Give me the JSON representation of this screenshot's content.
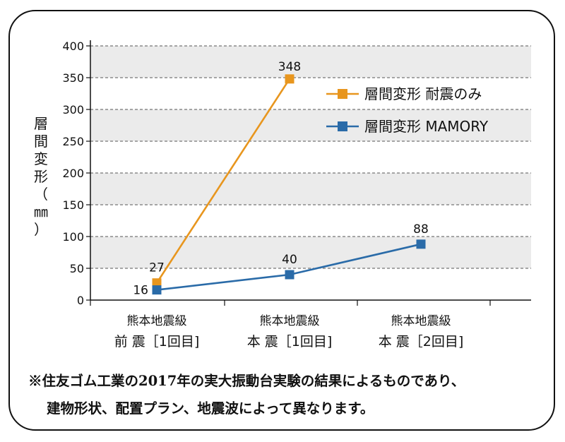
{
  "chart_data": {
    "type": "line",
    "categories": [
      [
        "熊本地震級",
        "前 震［1回目]"
      ],
      [
        "熊本地震級",
        "本 震［1回目]"
      ],
      [
        "熊本地震級",
        "本 震［2回目]"
      ]
    ],
    "ylabel": "層間変形（㎜）",
    "ylim": [
      0,
      400
    ],
    "yticks": [
      0,
      50,
      100,
      150,
      200,
      250,
      300,
      350,
      400
    ],
    "grid": true,
    "legend": "top-right",
    "series": [
      {
        "name": "層間変形 耐震のみ",
        "color": "#E8961E",
        "values": [
          27,
          348,
          null
        ],
        "labels": [
          "27",
          "348",
          ""
        ]
      },
      {
        "name": "層間変形 MAMORY",
        "color": "#2A6BA8",
        "values": [
          16,
          40,
          88
        ],
        "labels": [
          "16",
          "40",
          "88"
        ]
      }
    ]
  },
  "footnote": {
    "line1": "※住友ゴム工業の2017年の実大振動台実験の結果によるものであり、",
    "line2": "建物形状、配置プラン、地震波によって異なります。"
  }
}
